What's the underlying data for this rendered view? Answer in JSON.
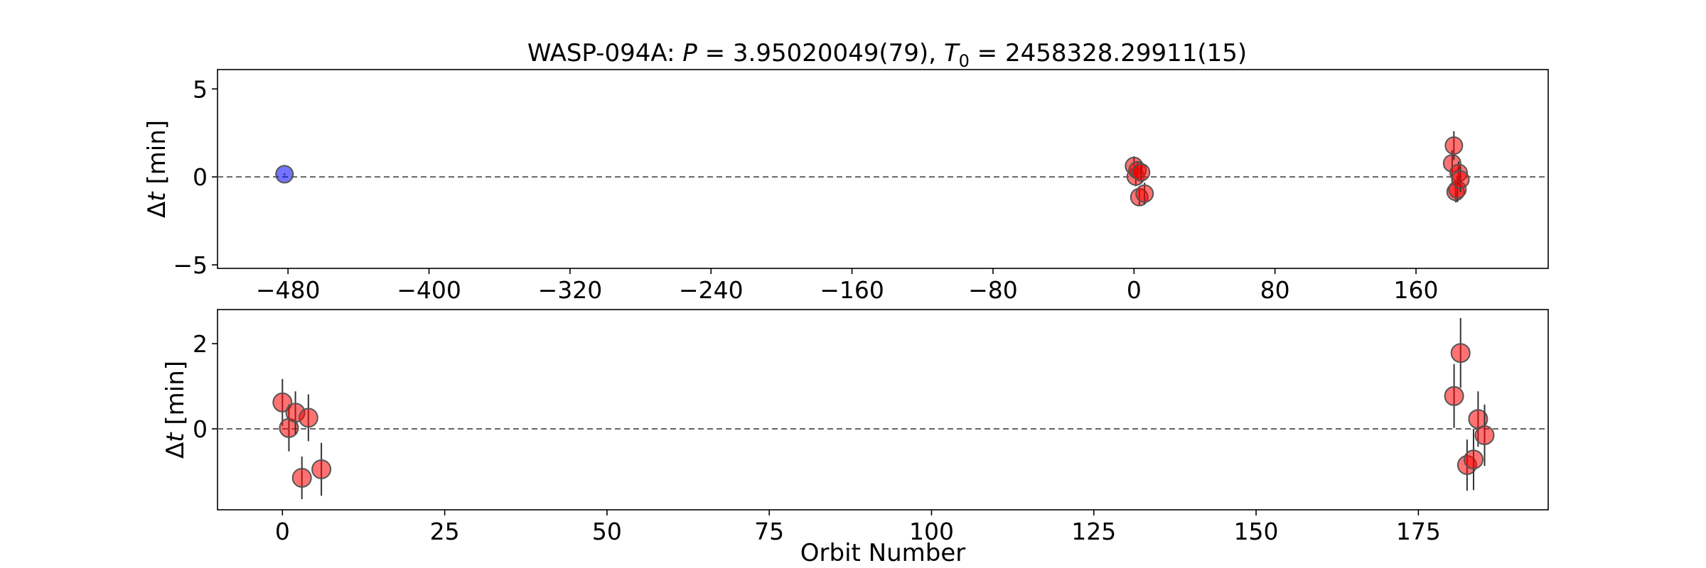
{
  "chart_data": [
    {
      "type": "scatter",
      "title_parts": {
        "prefix": "WASP-094A: ",
        "period_symbol": "P",
        "period_value": " = 3.95020049(79), ",
        "epoch_symbol": "T",
        "epoch_subscript": "0",
        "epoch_value": " = 2458328.29911(15)"
      },
      "ylabel": {
        "delta": "Δ",
        "var": "t",
        "unit": " [min]"
      },
      "xlabel": "",
      "xlim": [
        -520,
        235
      ],
      "ylim": [
        -5.2,
        6.1
      ],
      "xticks": [
        -480,
        -400,
        -320,
        -240,
        -160,
        -80,
        0,
        80,
        160
      ],
      "xtick_labels": [
        "−480",
        "−400",
        "−320",
        "−240",
        "−160",
        "−80",
        "0",
        "80",
        "160"
      ],
      "yticks": [
        -5,
        0,
        5
      ],
      "ytick_labels": [
        "−5",
        "0",
        "5"
      ],
      "zero_line": true,
      "series": [
        {
          "color": "#0000ff",
          "points": [
            {
              "x": -482,
              "y": 0.15,
              "err": 0.05
            }
          ]
        },
        {
          "color": "#ff0000",
          "points": [
            {
              "x": 0,
              "y": 0.62,
              "err": 0.55
            },
            {
              "x": 1,
              "y": 0.02,
              "err": 0.55
            },
            {
              "x": 2,
              "y": 0.38,
              "err": 0.5
            },
            {
              "x": 3,
              "y": -1.15,
              "err": 0.5
            },
            {
              "x": 4,
              "y": 0.26,
              "err": 0.55
            },
            {
              "x": 6,
              "y": -0.95,
              "err": 0.62
            },
            {
              "x": 180.5,
              "y": 0.77,
              "err": 0.75
            },
            {
              "x": 181.5,
              "y": 1.78,
              "err": 0.82
            },
            {
              "x": 182.5,
              "y": -0.85,
              "err": 0.6
            },
            {
              "x": 183.5,
              "y": -0.72,
              "err": 0.72
            },
            {
              "x": 184.2,
              "y": 0.23,
              "err": 0.65
            },
            {
              "x": 185.2,
              "y": -0.15,
              "err": 0.72
            }
          ]
        }
      ]
    },
    {
      "type": "scatter",
      "ylabel": {
        "delta": "Δ",
        "var": "t",
        "unit": " [min]"
      },
      "xlabel": "Orbit Number",
      "xlim": [
        -10,
        195
      ],
      "ylim": [
        -1.9,
        2.8
      ],
      "xticks": [
        0,
        25,
        50,
        75,
        100,
        125,
        150,
        175
      ],
      "xtick_labels": [
        "0",
        "25",
        "50",
        "75",
        "100",
        "125",
        "150",
        "175"
      ],
      "yticks": [
        0,
        2
      ],
      "ytick_labels": [
        "0",
        "2"
      ],
      "zero_line": true,
      "series": [
        {
          "color": "#ff0000",
          "points": [
            {
              "x": 0,
              "y": 0.62,
              "err": 0.55
            },
            {
              "x": 1,
              "y": 0.02,
              "err": 0.55
            },
            {
              "x": 2,
              "y": 0.38,
              "err": 0.5
            },
            {
              "x": 3,
              "y": -1.15,
              "err": 0.5
            },
            {
              "x": 4,
              "y": 0.26,
              "err": 0.55
            },
            {
              "x": 6,
              "y": -0.95,
              "err": 0.62
            },
            {
              "x": 180.5,
              "y": 0.77,
              "err": 0.75
            },
            {
              "x": 181.5,
              "y": 1.78,
              "err": 0.82
            },
            {
              "x": 182.5,
              "y": -0.85,
              "err": 0.6
            },
            {
              "x": 183.5,
              "y": -0.72,
              "err": 0.72
            },
            {
              "x": 184.2,
              "y": 0.23,
              "err": 0.65
            },
            {
              "x": 185.2,
              "y": -0.15,
              "err": 0.72
            }
          ]
        }
      ]
    }
  ]
}
